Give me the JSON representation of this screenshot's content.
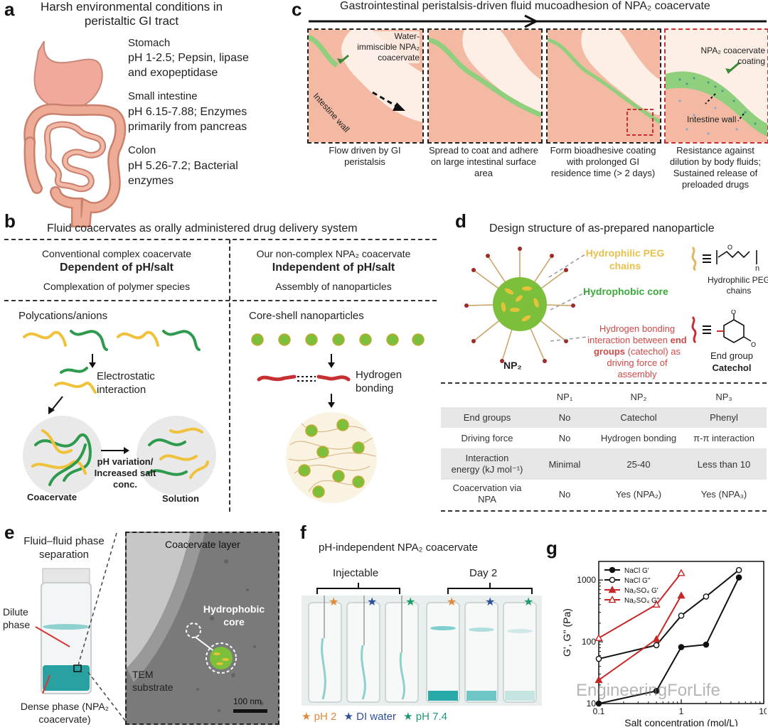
{
  "panel_a": {
    "letter": "a",
    "title": "Harsh environmental conditions in peristaltic GI tract",
    "stomach_name": "Stomach",
    "stomach_desc": "pH 1-2.5; Pepsin, lipase and exopeptidase",
    "intestine_name": "Small intestine",
    "intestine_desc": "pH 6.15-7.88; Enzymes primarily from pancreas",
    "colon_name": "Colon",
    "colon_desc": "pH 5.26-7.2; Bacterial enzymes"
  },
  "panel_c": {
    "letter": "c",
    "title": "Gastrointestinal peristalsis-driven fluid mucoadhesion of NPA₂ coacervate",
    "label_water": "Water-immiscible NPA₂ coacervate",
    "label_wall": "Intestine wall",
    "label_coating": "NPA₂ coacervate coating",
    "label_wall2": "Intestine wall",
    "captions": [
      "Flow driven by GI peristalsis",
      "Spread to coat and adhere on large intestinal surface area",
      "Form bioadhesive coating with prolonged GI residence time (> 2 days)",
      "Resistance against dilution by body fluids; Sustained release of preloaded drugs"
    ]
  },
  "panel_b": {
    "letter": "b",
    "title": "Fluid coacervates as orally administered drug delivery system",
    "left_head": "Conventional complex coacervate",
    "left_bold": "Dependent of pH/salt",
    "left_sub": "Complexation of polymer species",
    "right_head": "Our non-complex NPA₂ coacervate",
    "right_bold": "Independent of pH/salt",
    "right_sub": "Assembly of nanoparticles",
    "polycations": "Polycations/anions",
    "electrostatic": "Electrostatic interaction",
    "ph_variation": "pH variation/ Increased salt conc.",
    "coacervate": "Coacervate",
    "solution": "Solution",
    "core_shell": "Core-shell nanoparticles",
    "hydrogen": "Hydrogen bonding"
  },
  "panel_d": {
    "letter": "d",
    "title": "Design structure of as-prepared nanoparticle",
    "peg_label": "Hydrophilic PEG chains",
    "core_label": "Hydrophobic core",
    "hbond_pre": "Hydrogen bonding interaction between ",
    "hbond_bold": "end groups",
    "hbond_post": " (catechol) as driving force of assembly",
    "np2": "NP₂",
    "peg_right": "Hydrophilic PEG chains",
    "end_group": "End group",
    "catechol": "Catechol",
    "peg_subscript": "n",
    "table": {
      "header": [
        "",
        "NP₁",
        "NP₂",
        "NP₃"
      ],
      "rows": [
        [
          "End groups",
          "No",
          "Catechol",
          "Phenyl"
        ],
        [
          "Driving force",
          "No",
          "Hydrogen bonding",
          "π-π interaction"
        ],
        [
          "Interaction energy (kJ mol⁻¹)",
          "Minimal",
          "25-40",
          "Less than 10"
        ],
        [
          "Coacervation via NPA",
          "No",
          "Yes (NPA₂)",
          "Yes (NPA₃)"
        ]
      ]
    }
  },
  "panel_e": {
    "letter": "e",
    "title": "Fluid–fluid phase separation",
    "dilute": "Dilute phase",
    "dense": "Dense phase (NPA₂ coacervate)",
    "coacervate_layer": "Coacervate layer",
    "hydrophobic_core": "Hydrophobic core",
    "tem": "TEM substrate",
    "scale": "100 nm"
  },
  "panel_f": {
    "letter": "f",
    "title": "pH-independent NPA₂ coacervate",
    "injectable": "Injectable",
    "day2": "Day 2",
    "legend": [
      {
        "label": "pH 2",
        "color": "#e0893a"
      },
      {
        "label": "DI water",
        "color": "#2d4f9a"
      },
      {
        "label": "pH 7.4",
        "color": "#1f9a6a"
      }
    ]
  },
  "panel_g": {
    "letter": "g",
    "watermark": "EngineeringForLife"
  },
  "chart_data": {
    "type": "line",
    "xlabel": "Salt concentration (mol/L)",
    "ylabel": "G', G'' (Pa)",
    "xscale": "log",
    "yscale": "log",
    "xlim": [
      0.1,
      10
    ],
    "ylim": [
      10,
      2000
    ],
    "xticks": [
      "0.1",
      "1",
      "10"
    ],
    "yticks": [
      "10",
      "100",
      "1000"
    ],
    "legend_position": "top-left",
    "series": [
      {
        "name": "NaCl G'",
        "color": "#111111",
        "marker": "filled-circle",
        "x": [
          0.1,
          0.5,
          1,
          2,
          5
        ],
        "y": [
          10,
          16,
          82,
          90,
          1100
        ]
      },
      {
        "name": "NaCl G''",
        "color": "#111111",
        "marker": "open-circle",
        "x": [
          0.1,
          0.5,
          1,
          2,
          5
        ],
        "y": [
          53,
          88,
          265,
          540,
          1450
        ]
      },
      {
        "name": "Na₂SO₄ G'",
        "color": "#c62828",
        "marker": "filled-triangle",
        "x": [
          0.1,
          0.5,
          1
        ],
        "y": [
          24,
          110,
          560
        ]
      },
      {
        "name": "Na₂SO₄ G''",
        "color": "#c62828",
        "marker": "open-triangle",
        "x": [
          0.1,
          0.5,
          1
        ],
        "y": [
          115,
          400,
          1300
        ]
      }
    ]
  }
}
